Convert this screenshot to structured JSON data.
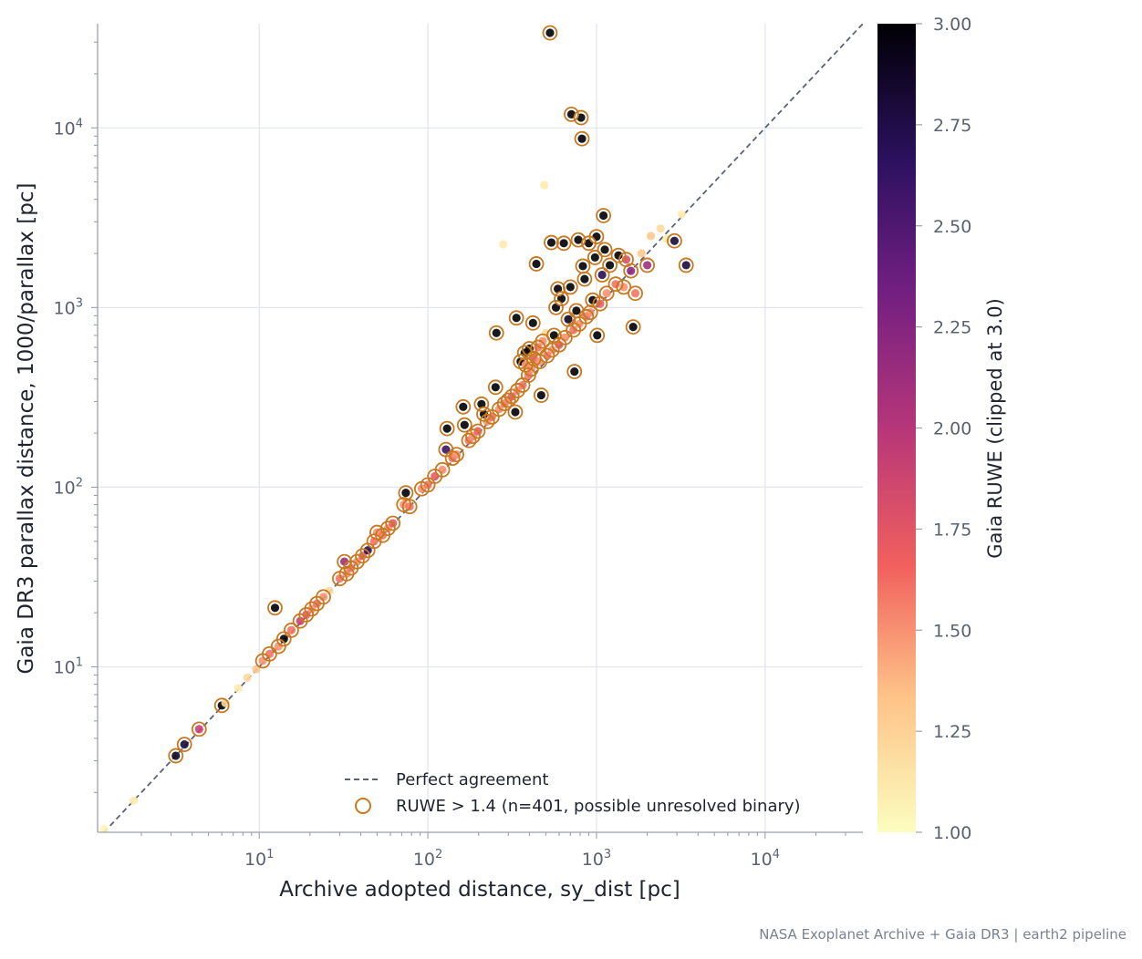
{
  "chart_data": {
    "type": "scatter",
    "title": "",
    "xlabel": "Archive adopted distance, sy_dist  [pc]",
    "ylabel": "Gaia DR3 parallax distance, 1000/parallax  [pc]",
    "x_scale": "log",
    "y_scale": "log",
    "xlim": [
      1.1,
      38000
    ],
    "ylim": [
      1.2,
      38000
    ],
    "x_ticks": [
      {
        "base": "10",
        "exp": "1",
        "value": 10
      },
      {
        "base": "10",
        "exp": "2",
        "value": 100
      },
      {
        "base": "10",
        "exp": "3",
        "value": 1000
      },
      {
        "base": "10",
        "exp": "4",
        "value": 10000
      }
    ],
    "y_ticks": [
      {
        "base": "10",
        "exp": "1",
        "value": 10
      },
      {
        "base": "10",
        "exp": "2",
        "value": 100
      },
      {
        "base": "10",
        "exp": "3",
        "value": 1000
      },
      {
        "base": "10",
        "exp": "4",
        "value": 10000
      }
    ],
    "grid": true,
    "colorbar": {
      "label": "Gaia RUWE (clipped at 3.0)",
      "min": 1.0,
      "max": 3.0,
      "ticks": [
        "1.00",
        "1.25",
        "1.50",
        "1.75",
        "2.00",
        "2.25",
        "2.50",
        "2.75",
        "3.00"
      ],
      "colormap": "magma_r",
      "colors": [
        "#fcfdbf",
        "#fec287",
        "#f1605d",
        "#b63679",
        "#721f81",
        "#2c115f",
        "#000004"
      ]
    },
    "legend": {
      "placement": "lower-right",
      "entries": [
        {
          "label": "Perfect agreement",
          "style": "dashed-line",
          "color": "#5a6272"
        },
        {
          "label": "RUWE > 1.4 (n=401, possible unresolved binary)",
          "style": "open-circle",
          "color": "#c8781e"
        }
      ]
    },
    "reference_line": {
      "name": "Perfect agreement",
      "x": [
        1.1,
        38000
      ],
      "y": [
        1.1,
        38000
      ]
    },
    "highlight_color": "#c8781e",
    "highlight_threshold": 1.4,
    "series": [
      {
        "name": "Gaia RUWE",
        "points": [
          {
            "x": 1.2,
            "y": 1.25,
            "ruwe": 1.05
          },
          {
            "x": 1.8,
            "y": 1.8,
            "ruwe": 1.1
          },
          {
            "x": 3.2,
            "y": 3.2,
            "ruwe": 2.9
          },
          {
            "x": 3.6,
            "y": 3.7,
            "ruwe": 2.8
          },
          {
            "x": 4.4,
            "y": 4.5,
            "ruwe": 1.9
          },
          {
            "x": 6.0,
            "y": 6.1,
            "ruwe": 3.0
          },
          {
            "x": 6.3,
            "y": 6.3,
            "ruwe": 1.2
          },
          {
            "x": 7.5,
            "y": 7.6,
            "ruwe": 1.1
          },
          {
            "x": 8.5,
            "y": 8.7,
            "ruwe": 1.2
          },
          {
            "x": 9.6,
            "y": 9.7,
            "ruwe": 1.3
          },
          {
            "x": 10.5,
            "y": 10.8,
            "ruwe": 1.5
          },
          {
            "x": 11.5,
            "y": 11.8,
            "ruwe": 1.6
          },
          {
            "x": 12.4,
            "y": 21.3,
            "ruwe": 3.0
          },
          {
            "x": 13.0,
            "y": 13.0,
            "ruwe": 1.5
          },
          {
            "x": 14.0,
            "y": 14.3,
            "ruwe": 3.0
          },
          {
            "x": 15.5,
            "y": 16.0,
            "ruwe": 1.6
          },
          {
            "x": 17.5,
            "y": 18.0,
            "ruwe": 1.9
          },
          {
            "x": 19.0,
            "y": 19.5,
            "ruwe": 1.7
          },
          {
            "x": 20.5,
            "y": 21.0,
            "ruwe": 1.5
          },
          {
            "x": 22.0,
            "y": 22.5,
            "ruwe": 1.6
          },
          {
            "x": 24.0,
            "y": 24.5,
            "ruwe": 1.5
          },
          {
            "x": 26.0,
            "y": 26.5,
            "ruwe": 1.2
          },
          {
            "x": 30.0,
            "y": 31.0,
            "ruwe": 1.6
          },
          {
            "x": 32.0,
            "y": 38.5,
            "ruwe": 2.1
          },
          {
            "x": 33.0,
            "y": 33.0,
            "ruwe": 1.5
          },
          {
            "x": 35.0,
            "y": 35.5,
            "ruwe": 1.6
          },
          {
            "x": 38.0,
            "y": 38.5,
            "ruwe": 1.5
          },
          {
            "x": 41.0,
            "y": 41.5,
            "ruwe": 1.7
          },
          {
            "x": 44.0,
            "y": 44.5,
            "ruwe": 2.7
          },
          {
            "x": 48.0,
            "y": 50.0,
            "ruwe": 1.6
          },
          {
            "x": 50.0,
            "y": 56.0,
            "ruwe": 1.5
          },
          {
            "x": 54.0,
            "y": 54.0,
            "ruwe": 1.6
          },
          {
            "x": 58.0,
            "y": 59.0,
            "ruwe": 1.5
          },
          {
            "x": 62.0,
            "y": 63.0,
            "ruwe": 1.7
          },
          {
            "x": 72.0,
            "y": 80.0,
            "ruwe": 1.5
          },
          {
            "x": 74.0,
            "y": 93.0,
            "ruwe": 3.0
          },
          {
            "x": 78.0,
            "y": 78.0,
            "ruwe": 1.6
          },
          {
            "x": 92.0,
            "y": 98.0,
            "ruwe": 1.5
          },
          {
            "x": 100.0,
            "y": 103.0,
            "ruwe": 1.6
          },
          {
            "x": 110.0,
            "y": 115.0,
            "ruwe": 1.7
          },
          {
            "x": 122.0,
            "y": 125.0,
            "ruwe": 1.5
          },
          {
            "x": 128.0,
            "y": 162.0,
            "ruwe": 2.6
          },
          {
            "x": 130.0,
            "y": 212.0,
            "ruwe": 3.0
          },
          {
            "x": 140.0,
            "y": 145.0,
            "ruwe": 1.6
          },
          {
            "x": 148.0,
            "y": 152.0,
            "ruwe": 1.5
          },
          {
            "x": 162.0,
            "y": 280.0,
            "ruwe": 3.0
          },
          {
            "x": 165.0,
            "y": 222.0,
            "ruwe": 3.0
          },
          {
            "x": 175.0,
            "y": 182.0,
            "ruwe": 1.6
          },
          {
            "x": 185.0,
            "y": 192.0,
            "ruwe": 1.5
          },
          {
            "x": 198.0,
            "y": 205.0,
            "ruwe": 1.7
          },
          {
            "x": 208.0,
            "y": 290.0,
            "ruwe": 3.0
          },
          {
            "x": 215.0,
            "y": 255.0,
            "ruwe": 3.0
          },
          {
            "x": 225.0,
            "y": 232.0,
            "ruwe": 1.5
          },
          {
            "x": 240.0,
            "y": 246.0,
            "ruwe": 1.6
          },
          {
            "x": 252.0,
            "y": 360.0,
            "ruwe": 3.0
          },
          {
            "x": 255.0,
            "y": 722.0,
            "ruwe": 3.0
          },
          {
            "x": 265.0,
            "y": 272.0,
            "ruwe": 1.5
          },
          {
            "x": 280.0,
            "y": 2250.0,
            "ruwe": 1.1
          },
          {
            "x": 285.0,
            "y": 292.0,
            "ruwe": 1.6
          },
          {
            "x": 300.0,
            "y": 305.0,
            "ruwe": 1.5
          },
          {
            "x": 315.0,
            "y": 320.0,
            "ruwe": 1.7
          },
          {
            "x": 330.0,
            "y": 262.0,
            "ruwe": 3.0
          },
          {
            "x": 335.0,
            "y": 875.0,
            "ruwe": 3.0
          },
          {
            "x": 340.0,
            "y": 345.0,
            "ruwe": 1.5
          },
          {
            "x": 355.0,
            "y": 500.0,
            "ruwe": 3.0
          },
          {
            "x": 365.0,
            "y": 370.0,
            "ruwe": 1.6
          },
          {
            "x": 375.0,
            "y": 560.0,
            "ruwe": 3.0
          },
          {
            "x": 380.0,
            "y": 480.0,
            "ruwe": 1.5
          },
          {
            "x": 395.0,
            "y": 420.0,
            "ruwe": 1.6
          },
          {
            "x": 400.0,
            "y": 590.0,
            "ruwe": 3.0
          },
          {
            "x": 410.0,
            "y": 455.0,
            "ruwe": 1.5
          },
          {
            "x": 420.0,
            "y": 820.0,
            "ruwe": 3.0
          },
          {
            "x": 425.0,
            "y": 520.0,
            "ruwe": 1.7
          },
          {
            "x": 440.0,
            "y": 1750.0,
            "ruwe": 3.0
          },
          {
            "x": 450.0,
            "y": 600.0,
            "ruwe": 1.6
          },
          {
            "x": 460.0,
            "y": 500.0,
            "ruwe": 1.5
          },
          {
            "x": 470.0,
            "y": 325.0,
            "ruwe": 3.0
          },
          {
            "x": 480.0,
            "y": 650.0,
            "ruwe": 1.5
          },
          {
            "x": 490.0,
            "y": 4800.0,
            "ruwe": 1.1
          },
          {
            "x": 500.0,
            "y": 720.0,
            "ruwe": 1.2
          },
          {
            "x": 510.0,
            "y": 540.0,
            "ruwe": 1.6
          },
          {
            "x": 530.0,
            "y": 33800.0,
            "ruwe": 3.0
          },
          {
            "x": 540.0,
            "y": 2300.0,
            "ruwe": 3.0
          },
          {
            "x": 545.0,
            "y": 580.0,
            "ruwe": 1.5
          },
          {
            "x": 560.0,
            "y": 700.0,
            "ruwe": 3.0
          },
          {
            "x": 575.0,
            "y": 1000.0,
            "ruwe": 3.0
          },
          {
            "x": 590.0,
            "y": 1270.0,
            "ruwe": 3.0
          },
          {
            "x": 600.0,
            "y": 620.0,
            "ruwe": 1.7
          },
          {
            "x": 620.0,
            "y": 1120.0,
            "ruwe": 3.0
          },
          {
            "x": 640.0,
            "y": 2280.0,
            "ruwe": 3.0
          },
          {
            "x": 650.0,
            "y": 680.0,
            "ruwe": 1.5
          },
          {
            "x": 680.0,
            "y": 860.0,
            "ruwe": 2.9
          },
          {
            "x": 700.0,
            "y": 1300.0,
            "ruwe": 3.0
          },
          {
            "x": 710.0,
            "y": 11900.0,
            "ruwe": 3.0
          },
          {
            "x": 730.0,
            "y": 750.0,
            "ruwe": 1.6
          },
          {
            "x": 740.0,
            "y": 440.0,
            "ruwe": 3.0
          },
          {
            "x": 760.0,
            "y": 960.0,
            "ruwe": 3.0
          },
          {
            "x": 780.0,
            "y": 2380.0,
            "ruwe": 3.0
          },
          {
            "x": 790.0,
            "y": 810.0,
            "ruwe": 1.5
          },
          {
            "x": 810.0,
            "y": 11400.0,
            "ruwe": 3.0
          },
          {
            "x": 820.0,
            "y": 8700.0,
            "ruwe": 3.0
          },
          {
            "x": 830.0,
            "y": 1700.0,
            "ruwe": 3.0
          },
          {
            "x": 850.0,
            "y": 1440.0,
            "ruwe": 3.0
          },
          {
            "x": 870.0,
            "y": 890.0,
            "ruwe": 1.6
          },
          {
            "x": 900.0,
            "y": 2280.0,
            "ruwe": 3.0
          },
          {
            "x": 920.0,
            "y": 940.0,
            "ruwe": 1.5
          },
          {
            "x": 950.0,
            "y": 1100.0,
            "ruwe": 3.0
          },
          {
            "x": 980.0,
            "y": 1900.0,
            "ruwe": 3.0
          },
          {
            "x": 1000.0,
            "y": 2480.0,
            "ruwe": 3.0
          },
          {
            "x": 1010.0,
            "y": 700.0,
            "ruwe": 3.0
          },
          {
            "x": 1050.0,
            "y": 1050.0,
            "ruwe": 1.7
          },
          {
            "x": 1080.0,
            "y": 1520.0,
            "ruwe": 2.7
          },
          {
            "x": 1100.0,
            "y": 3250.0,
            "ruwe": 3.0
          },
          {
            "x": 1120.0,
            "y": 2100.0,
            "ruwe": 3.0
          },
          {
            "x": 1150.0,
            "y": 1200.0,
            "ruwe": 1.5
          },
          {
            "x": 1200.0,
            "y": 1720.0,
            "ruwe": 3.0
          },
          {
            "x": 1300.0,
            "y": 1350.0,
            "ruwe": 1.6
          },
          {
            "x": 1350.0,
            "y": 1950.0,
            "ruwe": 3.0
          },
          {
            "x": 1450.0,
            "y": 1300.0,
            "ruwe": 1.5
          },
          {
            "x": 1500.0,
            "y": 1850.0,
            "ruwe": 1.8
          },
          {
            "x": 1600.0,
            "y": 1600.0,
            "ruwe": 2.2
          },
          {
            "x": 1650.0,
            "y": 780.0,
            "ruwe": 3.0
          },
          {
            "x": 1700.0,
            "y": 1200.0,
            "ruwe": 1.6
          },
          {
            "x": 1850.0,
            "y": 2000.0,
            "ruwe": 1.3
          },
          {
            "x": 2000.0,
            "y": 1720.0,
            "ruwe": 2.1
          },
          {
            "x": 2100.0,
            "y": 2500.0,
            "ruwe": 1.3
          },
          {
            "x": 2400.0,
            "y": 2750.0,
            "ruwe": 1.2
          },
          {
            "x": 2600.0,
            "y": 2400.0,
            "ruwe": 1.1
          },
          {
            "x": 2900.0,
            "y": 2350.0,
            "ruwe": 2.8
          },
          {
            "x": 3200.0,
            "y": 3300.0,
            "ruwe": 1.1
          },
          {
            "x": 3400.0,
            "y": 1720.0,
            "ruwe": 2.8
          }
        ]
      }
    ]
  },
  "credit": "NASA Exoplanet Archive + Gaia DR3 | earth2 pipeline"
}
